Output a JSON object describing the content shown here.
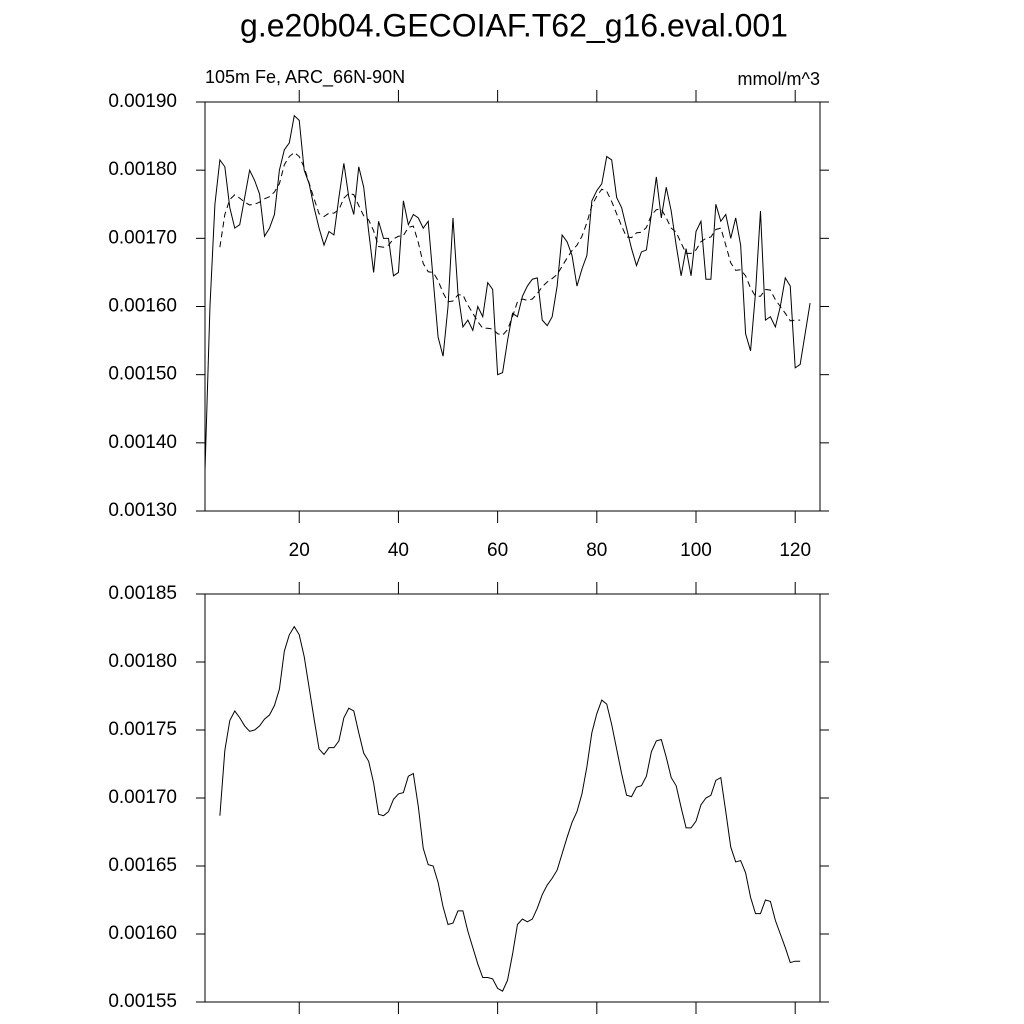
{
  "title": "g.e20b04.GECOIAF.T62_g16.eval.001",
  "chart_data": [
    {
      "type": "line",
      "subtitle_left": "105m Fe, ARC_66N-90N",
      "subtitle_right": "mmol/m^3",
      "x": [
        1,
        2,
        3,
        4,
        5,
        6,
        7,
        8,
        9,
        10,
        11,
        12,
        13,
        14,
        15,
        16,
        17,
        18,
        19,
        20,
        21,
        22,
        23,
        24,
        25,
        26,
        27,
        28,
        29,
        30,
        31,
        32,
        33,
        34,
        35,
        36,
        37,
        38,
        39,
        40,
        41,
        42,
        43,
        44,
        45,
        46,
        47,
        48,
        49,
        50,
        51,
        52,
        53,
        54,
        55,
        56,
        57,
        58,
        59,
        60,
        61,
        62,
        63,
        64,
        65,
        66,
        67,
        68,
        69,
        70,
        71,
        72,
        73,
        74,
        75,
        76,
        77,
        78,
        79,
        80,
        81,
        82,
        83,
        84,
        85,
        86,
        87,
        88,
        89,
        90,
        91,
        92,
        93,
        94,
        95,
        96,
        97,
        98,
        99,
        100,
        101,
        102,
        103,
        104,
        105,
        106,
        107,
        108,
        109,
        110,
        111,
        112,
        113,
        114,
        115,
        116,
        117,
        118,
        119,
        120,
        121,
        122,
        123
      ],
      "series": [
        {
          "color": "#000000",
          "dash": false,
          "values": [
            0.00136,
            0.0016,
            0.00175,
            0.001815,
            0.001805,
            0.001745,
            0.001715,
            0.00172,
            0.00176,
            0.0018,
            0.001785,
            0.001765,
            0.001703,
            0.001715,
            0.001735,
            0.0018,
            0.00183,
            0.00184,
            0.00188,
            0.001873,
            0.0018,
            0.00178,
            0.001745,
            0.001715,
            0.00169,
            0.00171,
            0.001705,
            0.00176,
            0.00181,
            0.00176,
            0.001735,
            0.001805,
            0.001775,
            0.00171,
            0.00165,
            0.001725,
            0.0017,
            0.0017,
            0.001645,
            0.00165,
            0.001755,
            0.00172,
            0.001735,
            0.00173,
            0.001715,
            0.001725,
            0.00164,
            0.001555,
            0.001527,
            0.0016,
            0.00173,
            0.00162,
            0.00157,
            0.00158,
            0.001565,
            0.0016,
            0.001585,
            0.001635,
            0.001625,
            0.0015,
            0.001503,
            0.00155,
            0.00159,
            0.001585,
            0.001615,
            0.00163,
            0.00164,
            0.001642,
            0.00158,
            0.001572,
            0.001585,
            0.00163,
            0.001705,
            0.001695,
            0.001675,
            0.00163,
            0.001655,
            0.001675,
            0.001755,
            0.00177,
            0.00178,
            0.00182,
            0.001815,
            0.00176,
            0.001745,
            0.001715,
            0.001685,
            0.00166,
            0.00168,
            0.001683,
            0.001735,
            0.00179,
            0.00173,
            0.001775,
            0.00174,
            0.00169,
            0.001645,
            0.001685,
            0.001645,
            0.00171,
            0.001725,
            0.00164,
            0.00164,
            0.00175,
            0.001725,
            0.001735,
            0.0017,
            0.00173,
            0.00169,
            0.00156,
            0.001535,
            0.00162,
            0.00174,
            0.00158,
            0.001585,
            0.00157,
            0.0016,
            0.001642,
            0.00163,
            0.00151,
            0.001515,
            0.00156,
            0.001605
          ]
        },
        {
          "color": "#000000",
          "dash": true,
          "values": [
            null,
            null,
            null,
            0.001687,
            0.001735,
            0.001757,
            0.001764,
            0.001759,
            0.001753,
            0.001749,
            0.00175,
            0.001753,
            0.001758,
            0.001761,
            0.001768,
            0.00178,
            0.001808,
            0.00182,
            0.001826,
            0.00182,
            0.001804,
            0.001781,
            0.001758,
            0.001736,
            0.001732,
            0.001737,
            0.001737,
            0.001742,
            0.001759,
            0.001766,
            0.001764,
            0.001748,
            0.001733,
            0.001727,
            0.001711,
            0.001688,
            0.001687,
            0.00169,
            0.001699,
            0.001703,
            0.001704,
            0.001716,
            0.001718,
            0.001694,
            0.001663,
            0.001651,
            0.00165,
            0.001638,
            0.00162,
            0.001607,
            0.001608,
            0.001617,
            0.001617,
            0.001602,
            0.00159,
            0.001578,
            0.001568,
            0.001568,
            0.001567,
            0.00156,
            0.001558,
            0.001566,
            0.001585,
            0.001607,
            0.001611,
            0.001609,
            0.001611,
            0.001619,
            0.001629,
            0.001636,
            0.001641,
            0.001647,
            0.001659,
            0.001671,
            0.001682,
            0.00169,
            0.001703,
            0.001723,
            0.001748,
            0.001762,
            0.001772,
            0.001769,
            0.001754,
            0.001736,
            0.001718,
            0.001702,
            0.001701,
            0.001708,
            0.001709,
            0.001716,
            0.001734,
            0.001742,
            0.001743,
            0.00173,
            0.001715,
            0.001709,
            0.001693,
            0.001678,
            0.001678,
            0.001683,
            0.001695,
            0.0017,
            0.001702,
            0.001713,
            0.001715,
            0.00169,
            0.001664,
            0.001653,
            0.001654,
            0.001645,
            0.001627,
            0.001615,
            0.001615,
            0.001625,
            0.001624,
            0.00161,
            0.0016,
            0.00159,
            0.001579,
            0.00158,
            0.00158,
            null,
            null
          ]
        }
      ],
      "xlim": [
        1,
        125
      ],
      "xticks": [
        20,
        40,
        60,
        80,
        100,
        120
      ],
      "ylim": [
        0.0013,
        0.0019
      ],
      "yticks": [
        {
          "value": 0.0013,
          "label": "0.00130"
        },
        {
          "value": 0.0014,
          "label": "0.00140"
        },
        {
          "value": 0.0015,
          "label": "0.00150"
        },
        {
          "value": 0.0016,
          "label": "0.00160"
        },
        {
          "value": 0.0017,
          "label": "0.00170"
        },
        {
          "value": 0.0018,
          "label": "0.00180"
        },
        {
          "value": 0.0019,
          "label": "0.00190"
        }
      ]
    },
    {
      "type": "line",
      "x": [
        1,
        2,
        3,
        4,
        5,
        6,
        7,
        8,
        9,
        10,
        11,
        12,
        13,
        14,
        15,
        16,
        17,
        18,
        19,
        20,
        21,
        22,
        23,
        24,
        25,
        26,
        27,
        28,
        29,
        30,
        31,
        32,
        33,
        34,
        35,
        36,
        37,
        38,
        39,
        40,
        41,
        42,
        43,
        44,
        45,
        46,
        47,
        48,
        49,
        50,
        51,
        52,
        53,
        54,
        55,
        56,
        57,
        58,
        59,
        60,
        61,
        62,
        63,
        64,
        65,
        66,
        67,
        68,
        69,
        70,
        71,
        72,
        73,
        74,
        75,
        76,
        77,
        78,
        79,
        80,
        81,
        82,
        83,
        84,
        85,
        86,
        87,
        88,
        89,
        90,
        91,
        92,
        93,
        94,
        95,
        96,
        97,
        98,
        99,
        100,
        101,
        102,
        103,
        104,
        105,
        106,
        107,
        108,
        109,
        110,
        111,
        112,
        113,
        114,
        115,
        116,
        117,
        118,
        119,
        120,
        121,
        122,
        123
      ],
      "series": [
        {
          "color": "#000000",
          "dash": false,
          "values": [
            null,
            null,
            null,
            0.001687,
            0.001735,
            0.001757,
            0.001764,
            0.001759,
            0.001753,
            0.001749,
            0.00175,
            0.001753,
            0.001758,
            0.001761,
            0.001768,
            0.00178,
            0.001808,
            0.00182,
            0.001826,
            0.00182,
            0.001804,
            0.001781,
            0.001758,
            0.001736,
            0.001732,
            0.001737,
            0.001737,
            0.001742,
            0.001759,
            0.001766,
            0.001764,
            0.001748,
            0.001733,
            0.001727,
            0.001711,
            0.001688,
            0.001687,
            0.00169,
            0.001699,
            0.001703,
            0.001704,
            0.001716,
            0.001718,
            0.001694,
            0.001663,
            0.001651,
            0.00165,
            0.001638,
            0.00162,
            0.001607,
            0.001608,
            0.001617,
            0.001617,
            0.001602,
            0.00159,
            0.001578,
            0.001568,
            0.001568,
            0.001567,
            0.00156,
            0.001558,
            0.001566,
            0.001585,
            0.001607,
            0.001611,
            0.001609,
            0.001611,
            0.001619,
            0.001629,
            0.001636,
            0.001641,
            0.001647,
            0.001659,
            0.001671,
            0.001682,
            0.00169,
            0.001703,
            0.001723,
            0.001748,
            0.001762,
            0.001772,
            0.001769,
            0.001754,
            0.001736,
            0.001718,
            0.001702,
            0.001701,
            0.001708,
            0.001709,
            0.001716,
            0.001734,
            0.001742,
            0.001743,
            0.00173,
            0.001715,
            0.001709,
            0.001693,
            0.001678,
            0.001678,
            0.001683,
            0.001695,
            0.0017,
            0.001702,
            0.001713,
            0.001715,
            0.00169,
            0.001664,
            0.001653,
            0.001654,
            0.001645,
            0.001627,
            0.001615,
            0.001615,
            0.001625,
            0.001624,
            0.00161,
            0.0016,
            0.00159,
            0.001579,
            0.00158,
            0.00158,
            null,
            null
          ]
        }
      ],
      "xlim": [
        1,
        125
      ],
      "xticks": [
        20,
        40,
        60,
        80,
        100,
        120
      ],
      "ylim": [
        0.00155,
        0.00185
      ],
      "yticks": [
        {
          "value": 0.00155,
          "label": "0.00155"
        },
        {
          "value": 0.0016,
          "label": "0.00160"
        },
        {
          "value": 0.00165,
          "label": "0.00165"
        },
        {
          "value": 0.0017,
          "label": "0.00170"
        },
        {
          "value": 0.00175,
          "label": "0.00175"
        },
        {
          "value": 0.0018,
          "label": "0.00180"
        },
        {
          "value": 0.00185,
          "label": "0.00185"
        }
      ]
    }
  ]
}
